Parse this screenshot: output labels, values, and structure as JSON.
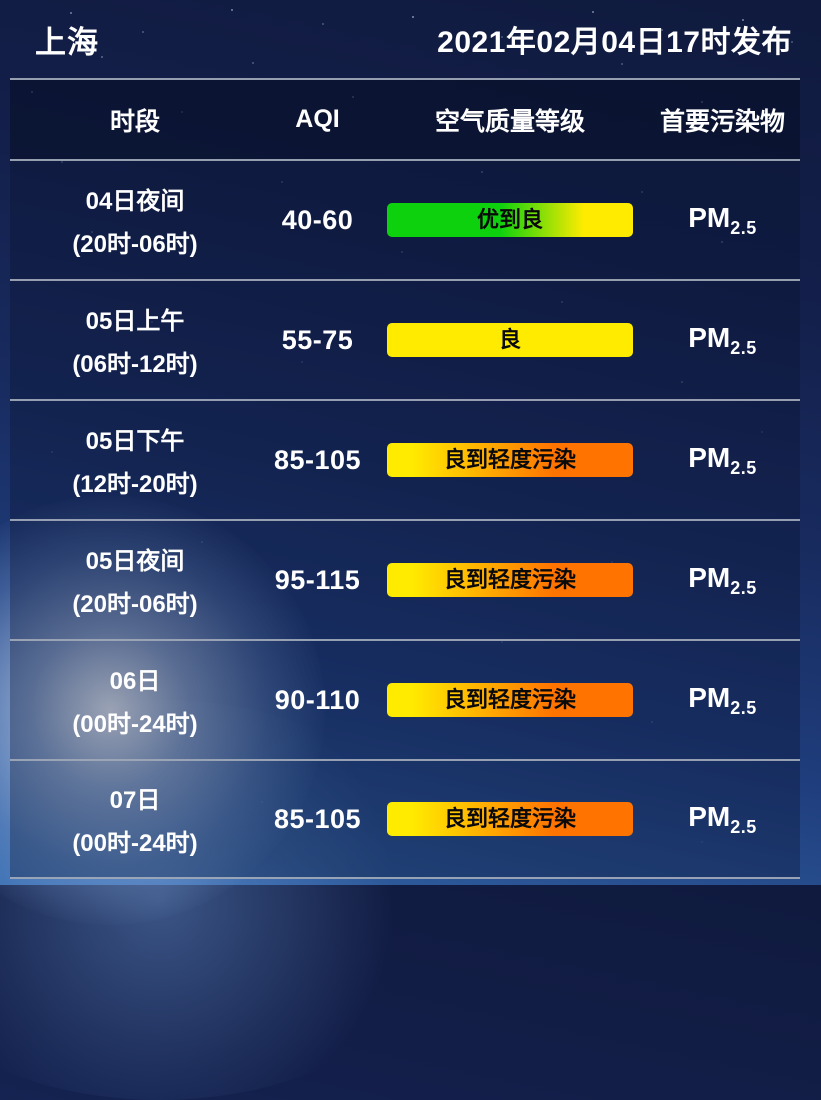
{
  "topbar": {
    "city": "上海",
    "published": "2021年02月04日17时发布"
  },
  "table": {
    "headers": [
      "时段",
      "AQI",
      "空气质量等级",
      "首要污染物"
    ],
    "rows": [
      {
        "period_line1": "04日夜间",
        "period_line2": "(20时-06时)",
        "aqi": "40-60",
        "level": "优到良",
        "level_type": "excellent_to_good",
        "pollutant_base": "PM",
        "pollutant_sub": "2.5"
      },
      {
        "period_line1": "05日上午",
        "period_line2": "(06时-12时)",
        "aqi": "55-75",
        "level": "良",
        "level_type": "good",
        "pollutant_base": "PM",
        "pollutant_sub": "2.5"
      },
      {
        "period_line1": "05日下午",
        "period_line2": "(12时-20时)",
        "aqi": "85-105",
        "level": "良到轻度污染",
        "level_type": "good_to_light",
        "pollutant_base": "PM",
        "pollutant_sub": "2.5"
      },
      {
        "period_line1": "05日夜间",
        "period_line2": "(20时-06时)",
        "aqi": "95-115",
        "level": "良到轻度污染",
        "level_type": "good_to_light",
        "pollutant_base": "PM",
        "pollutant_sub": "2.5"
      },
      {
        "period_line1": "06日",
        "period_line2": "(00时-24时)",
        "aqi": "90-110",
        "level": "良到轻度污染",
        "level_type": "good_to_light",
        "pollutant_base": "PM",
        "pollutant_sub": "2.5"
      },
      {
        "period_line1": "07日",
        "period_line2": "(00时-24时)",
        "aqi": "85-105",
        "level": "良到轻度污染",
        "level_type": "good_to_light",
        "pollutant_base": "PM",
        "pollutant_sub": "2.5"
      }
    ]
  },
  "colors": {
    "aqi_green": "#0ed10e",
    "aqi_yellow": "#ffeb00",
    "aqi_orange": "#ff7300",
    "divider": "#9ea7b6",
    "text": "#ffffff"
  },
  "chart_data": {
    "type": "table",
    "title": "上海 空气质量预报 2021年02月04日17时发布",
    "columns": [
      "时段",
      "AQI",
      "空气质量等级",
      "首要污染物"
    ],
    "rows": [
      [
        "04日夜间 (20时-06时)",
        "40-60",
        "优到良",
        "PM2.5"
      ],
      [
        "05日上午 (06时-12时)",
        "55-75",
        "良",
        "PM2.5"
      ],
      [
        "05日下午 (12时-20时)",
        "85-105",
        "良到轻度污染",
        "PM2.5"
      ],
      [
        "05日夜间 (20时-06时)",
        "95-115",
        "良到轻度污染",
        "PM2.5"
      ],
      [
        "06日 (00时-24时)",
        "90-110",
        "良到轻度污染",
        "PM2.5"
      ],
      [
        "07日 (00时-24时)",
        "85-105",
        "良到轻度污染",
        "PM2.5"
      ]
    ]
  }
}
